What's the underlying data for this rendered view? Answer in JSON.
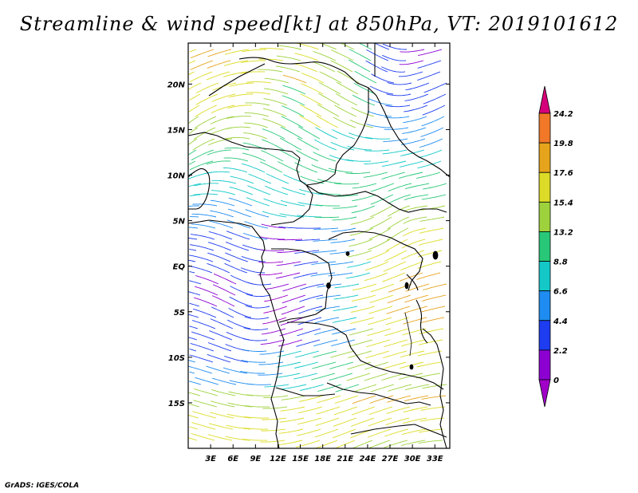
{
  "title": "Streamline & wind speed[kt] at 850hPa, VT: 2019101612",
  "footer": "GrADS: IGES/COLA",
  "map": {
    "type": "streamline-map",
    "lon_range": [
      0,
      35
    ],
    "lat_range": [
      -20,
      24.5
    ],
    "lon_ticks": [
      3,
      6,
      9,
      12,
      15,
      18,
      21,
      24,
      27,
      30,
      33
    ],
    "lon_labels": [
      "3E",
      "6E",
      "9E",
      "12E",
      "15E",
      "18E",
      "21E",
      "24E",
      "27E",
      "30E",
      "33E"
    ],
    "lat_ticks": [
      20,
      15,
      10,
      5,
      0,
      -5,
      -10,
      -15
    ],
    "lat_labels": [
      "20N",
      "15N",
      "10N",
      "5N",
      "EQ",
      "5S",
      "10S",
      "15S"
    ]
  },
  "colorbar": {
    "labels": [
      "24.2",
      "19.8",
      "17.6",
      "15.4",
      "13.2",
      "8.8",
      "6.6",
      "4.4",
      "2.2",
      "0"
    ],
    "colors": [
      "#d6007a",
      "#f07828",
      "#e6a41c",
      "#dcdc28",
      "#9ed23c",
      "#28c878",
      "#14c8c8",
      "#1e8cf0",
      "#1e3cf0",
      "#8c00d2",
      "#a000c8"
    ]
  }
}
